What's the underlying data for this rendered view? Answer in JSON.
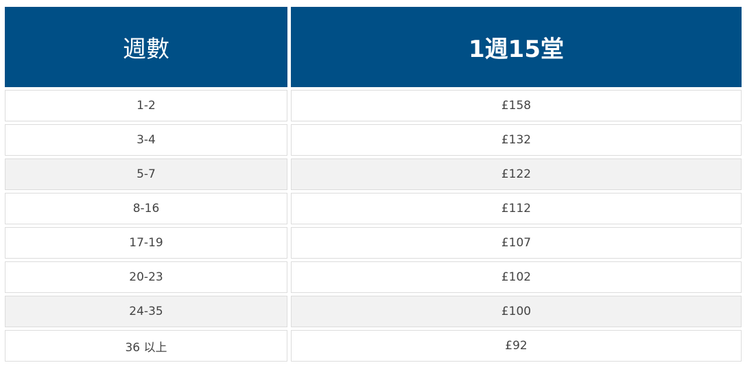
{
  "table": {
    "header": [
      "週數",
      "1週15堂"
    ],
    "rows": [
      [
        "1-2",
        "£158"
      ],
      [
        "3-4",
        "£132"
      ],
      [
        "5-7",
        "£122"
      ],
      [
        "8-16",
        "£112"
      ],
      [
        "17-19",
        "£107"
      ],
      [
        "20-23",
        "£102"
      ],
      [
        "24-35",
        "£100"
      ],
      [
        "36 以上",
        "£92"
      ]
    ]
  }
}
